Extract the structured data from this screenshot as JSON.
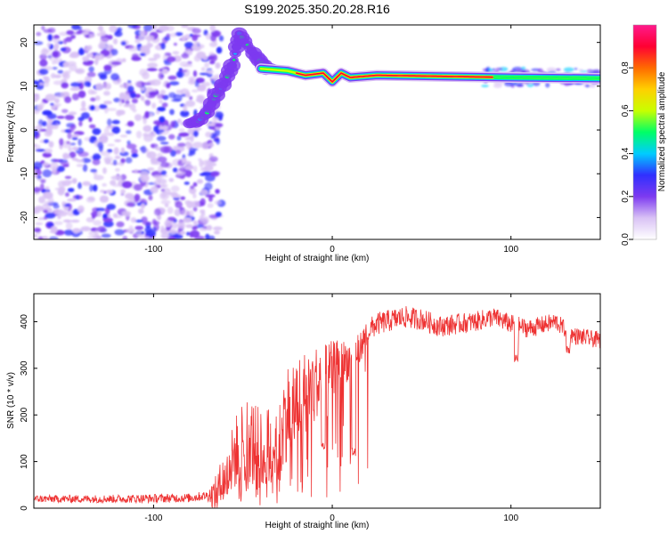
{
  "title": "S199.2025.350.20.28.R16",
  "chart_data": [
    {
      "type": "heatmap",
      "name": "spectrogram",
      "xlabel": "Height of straight line (km)",
      "ylabel": "Frequency (Hz)",
      "xlim": [
        -167,
        150
      ],
      "ylim": [
        -25,
        24
      ],
      "xticks": [
        -100,
        0,
        100
      ],
      "yticks": [
        -20,
        -10,
        0,
        10,
        20
      ],
      "colorbar": {
        "label": "Normalized spectral amplitude",
        "range": [
          0,
          1
        ],
        "ticks": [
          "0.0",
          "0.2",
          "0.4",
          "0.6",
          "0.8"
        ],
        "tick_values": [
          0.0,
          0.2,
          0.4,
          0.6,
          0.8
        ],
        "colors": [
          "#ffffff",
          "#d9c2f5",
          "#7d3af0",
          "#3030ff",
          "#00ccff",
          "#00ff66",
          "#c8ff00",
          "#ffd000",
          "#ff6a00",
          "#ff0033",
          "#ff1a8c"
        ]
      },
      "features": {
        "noise_region_x": [
          -167,
          -68
        ],
        "noise_amplitude_range": [
          0.05,
          0.35
        ],
        "rising_track": [
          [
            -80,
            1.5
          ],
          [
            -75,
            2.0
          ],
          [
            -70,
            4.0
          ],
          [
            -65,
            8.0
          ],
          [
            -60,
            11.0
          ],
          [
            -55,
            16.0
          ],
          [
            -52,
            22.0
          ],
          [
            -46,
            18.5
          ],
          [
            -42,
            16.5
          ],
          [
            -37,
            14.0
          ],
          [
            -32,
            14.0
          ]
        ],
        "dominant_line": [
          [
            -40,
            14.0
          ],
          [
            -25,
            13.5
          ],
          [
            -15,
            12.5
          ],
          [
            -5,
            13.0
          ],
          [
            0,
            11.0
          ],
          [
            5,
            13.0
          ],
          [
            10,
            12.0
          ],
          [
            25,
            12.5
          ],
          [
            100,
            12.0
          ],
          [
            150,
            11.8
          ]
        ],
        "strong_segment_x": [
          -20,
          90
        ]
      }
    },
    {
      "type": "line",
      "name": "snr",
      "xlabel": "Height of straight line (km)",
      "ylabel": "SNR (10 * v/v)",
      "xlim": [
        -167,
        150
      ],
      "ylim": [
        0,
        460
      ],
      "xticks": [
        -100,
        0,
        100
      ],
      "yticks": [
        0,
        100,
        200,
        300,
        400
      ],
      "color": "#ee3333",
      "envelope": [
        [
          -167,
          20
        ],
        [
          -120,
          20
        ],
        [
          -80,
          22
        ],
        [
          -65,
          30
        ],
        [
          -60,
          60
        ],
        [
          -55,
          110
        ],
        [
          -50,
          160
        ],
        [
          -45,
          140
        ],
        [
          -40,
          100
        ],
        [
          -35,
          120
        ],
        [
          -30,
          160
        ],
        [
          -25,
          210
        ],
        [
          -20,
          230
        ],
        [
          -15,
          250
        ],
        [
          -10,
          270
        ],
        [
          -5,
          280
        ],
        [
          0,
          300
        ],
        [
          10,
          320
        ],
        [
          15,
          340
        ],
        [
          20,
          380
        ],
        [
          25,
          395
        ],
        [
          40,
          410
        ],
        [
          50,
          405
        ],
        [
          60,
          390
        ],
        [
          80,
          400
        ],
        [
          90,
          410
        ],
        [
          100,
          395
        ],
        [
          110,
          385
        ],
        [
          125,
          400
        ],
        [
          135,
          370
        ],
        [
          150,
          360
        ]
      ],
      "noise_amplitude": [
        [
          -167,
          8
        ],
        [
          -70,
          10
        ],
        [
          -62,
          60
        ],
        [
          -40,
          110
        ],
        [
          -20,
          100
        ],
        [
          0,
          60
        ],
        [
          20,
          25
        ],
        [
          150,
          18
        ]
      ],
      "dips": [
        [
          -5,
          120
        ],
        [
          12,
          110
        ],
        [
          103,
          310
        ],
        [
          132,
          330
        ]
      ]
    }
  ]
}
